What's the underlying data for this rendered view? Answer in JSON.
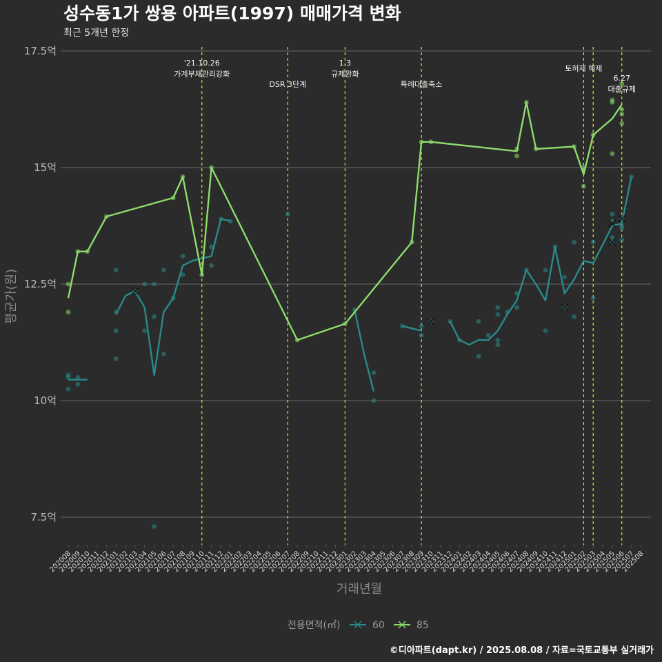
{
  "chart_data": {
    "type": "line",
    "title": "성수동1가 쌍용 아파트(1997) 매매가격 변화",
    "subtitle": "최근 5개년 한정",
    "xlabel": "거래년월",
    "ylabel": "평균가(원)",
    "caption": "©디아파트(dapt.kr) / 2025.08.08 / 자료=국토교통부 실거래가",
    "ylim": [
      6.9,
      17.5
    ],
    "y_ticks": [
      {
        "value": 7.5,
        "label": "7.5억"
      },
      {
        "value": 10,
        "label": "10억"
      },
      {
        "value": 12.5,
        "label": "12.5억"
      },
      {
        "value": 15,
        "label": "15억"
      },
      {
        "value": 17.5,
        "label": "17.5억"
      }
    ],
    "x_categories": [
      "202008",
      "202009",
      "202010",
      "202011",
      "202012",
      "202101",
      "202102",
      "202103",
      "202104",
      "202105",
      "202106",
      "202107",
      "202108",
      "202109",
      "202110",
      "202111",
      "202112",
      "202201",
      "202202",
      "202203",
      "202204",
      "202205",
      "202206",
      "202207",
      "202208",
      "202209",
      "202210",
      "202211",
      "202212",
      "202301",
      "202302",
      "202303",
      "202304",
      "202305",
      "202306",
      "202307",
      "202308",
      "202309",
      "202310",
      "202311",
      "202312",
      "202401",
      "202402",
      "202403",
      "202404",
      "202405",
      "202406",
      "202407",
      "202408",
      "202409",
      "202410",
      "202411",
      "202412",
      "202501",
      "202502",
      "202503",
      "202504",
      "202505",
      "202506",
      "202507",
      "202508"
    ],
    "legend": {
      "title": "전용면적(㎡)",
      "entries": [
        {
          "name": "60",
          "color": "#2a8a8a"
        },
        {
          "name": "85",
          "color": "#8edc6c"
        }
      ]
    },
    "series": [
      {
        "name": "60",
        "color": "#2a8a8a",
        "segments": [
          [
            [
              "202008",
              10.45
            ],
            [
              "202009",
              10.45
            ],
            [
              "202010",
              10.45
            ]
          ],
          [
            [
              "202101",
              11.85
            ],
            [
              "202102",
              12.25
            ],
            [
              "202103",
              12.35
            ],
            [
              "202104",
              12.0
            ],
            [
              "202105",
              10.55
            ],
            [
              "202106",
              11.9
            ],
            [
              "202107",
              12.2
            ],
            [
              "202108",
              12.9
            ],
            [
              "202109",
              13.0
            ],
            [
              "202110",
              13.05
            ],
            [
              "202111",
              13.1
            ],
            [
              "202112",
              13.9
            ],
            [
              "202201",
              13.85
            ]
          ],
          [
            [
              "202302",
              11.95
            ],
            [
              "202303",
              11.0
            ],
            [
              "202304",
              10.2
            ]
          ],
          [
            [
              "202307",
              11.6
            ],
            [
              "202308",
              11.55
            ],
            [
              "202309",
              11.5
            ]
          ],
          [
            [
              "202312",
              11.7
            ],
            [
              "202401",
              11.3
            ],
            [
              "202402",
              11.2
            ],
            [
              "202403",
              11.3
            ],
            [
              "202404",
              11.3
            ],
            [
              "202405",
              11.5
            ],
            [
              "202406",
              11.85
            ],
            [
              "202407",
              12.15
            ],
            [
              "202408",
              12.8
            ],
            [
              "202409",
              12.5
            ],
            [
              "202410",
              12.15
            ],
            [
              "202411",
              13.3
            ],
            [
              "202412",
              12.3
            ],
            [
              "202501",
              12.6
            ],
            [
              "202502",
              13.0
            ],
            [
              "202503",
              12.95
            ],
            [
              "202505",
              13.75
            ],
            [
              "202506",
              13.8
            ],
            [
              "202507",
              14.8
            ]
          ]
        ],
        "points": [
          [
            "202008",
            10.55
          ],
          [
            "202008",
            10.5
          ],
          [
            "202008",
            10.25
          ],
          [
            "202009",
            10.5
          ],
          [
            "202009",
            10.35
          ],
          [
            "202101",
            11.9
          ],
          [
            "202101",
            11.5
          ],
          [
            "202101",
            10.9
          ],
          [
            "202101",
            12.8
          ],
          [
            "202103",
            12.35
          ],
          [
            "202104",
            11.5
          ],
          [
            "202104",
            12.5
          ],
          [
            "202105",
            11.8
          ],
          [
            "202105",
            7.3
          ],
          [
            "202105",
            12.5
          ],
          [
            "202106",
            11.0
          ],
          [
            "202106",
            12.8
          ],
          [
            "202107",
            12.2
          ],
          [
            "202108",
            12.7
          ],
          [
            "202108",
            13.1
          ],
          [
            "202111",
            13.3
          ],
          [
            "202111",
            12.9
          ],
          [
            "202112",
            13.9
          ],
          [
            "202201",
            13.85
          ],
          [
            "202207",
            14.0
          ],
          [
            "202302",
            11.95
          ],
          [
            "202304",
            10.6
          ],
          [
            "202304",
            10.0
          ],
          [
            "202307",
            11.6
          ],
          [
            "202309",
            11.4
          ],
          [
            "202309",
            11.6
          ],
          [
            "202310",
            11.7
          ],
          [
            "202312",
            11.7
          ],
          [
            "202401",
            11.3
          ],
          [
            "202403",
            11.7
          ],
          [
            "202403",
            10.95
          ],
          [
            "202404",
            11.4
          ],
          [
            "202405",
            11.3
          ],
          [
            "202405",
            11.2
          ],
          [
            "202405",
            11.85
          ],
          [
            "202405",
            12.0
          ],
          [
            "202406",
            11.9
          ],
          [
            "202407",
            12.0
          ],
          [
            "202407",
            12.3
          ],
          [
            "202408",
            12.8
          ],
          [
            "202410",
            11.5
          ],
          [
            "202410",
            12.8
          ],
          [
            "202411",
            13.3
          ],
          [
            "202412",
            12.0
          ],
          [
            "202412",
            12.65
          ],
          [
            "202501",
            11.8
          ],
          [
            "202501",
            13.4
          ],
          [
            "202503",
            12.2
          ],
          [
            "202503",
            13.4
          ],
          [
            "202505",
            13.85
          ],
          [
            "202505",
            13.5
          ],
          [
            "202505",
            13.4
          ],
          [
            "202505",
            14.0
          ],
          [
            "202506",
            13.7
          ],
          [
            "202506",
            13.45
          ],
          [
            "202506",
            13.9
          ],
          [
            "202506",
            13.75
          ],
          [
            "202507",
            14.8
          ]
        ],
        "x_markers": [
          [
            "202103",
            12.35
          ],
          [
            "202310",
            11.7
          ],
          [
            "202412",
            12.0
          ],
          [
            "202505",
            13.8
          ],
          [
            "202505",
            13.4
          ],
          [
            "202506",
            13.9
          ]
        ]
      },
      {
        "name": "85",
        "color": "#8edc6c",
        "segments": [
          [
            [
              "202008",
              12.2
            ],
            [
              "202009",
              13.2
            ],
            [
              "202010",
              13.2
            ],
            [
              "202012",
              13.95
            ],
            [
              "202107",
              14.35
            ],
            [
              "202108",
              14.8
            ],
            [
              "202110",
              12.7
            ],
            [
              "202111",
              15.0
            ],
            [
              "202208",
              11.3
            ],
            [
              "202301",
              11.65
            ],
            [
              "202308",
              13.4
            ],
            [
              "202309",
              15.55
            ],
            [
              "202310",
              15.55
            ],
            [
              "202407",
              15.35
            ],
            [
              "202408",
              16.4
            ],
            [
              "202409",
              15.4
            ],
            [
              "202501",
              15.45
            ],
            [
              "202502",
              14.85
            ],
            [
              "202503",
              15.7
            ],
            [
              "202505",
              16.05
            ],
            [
              "202506",
              16.35
            ]
          ]
        ],
        "points": [
          [
            "202008",
            12.5
          ],
          [
            "202008",
            11.9
          ],
          [
            "202009",
            13.2
          ],
          [
            "202010",
            13.2
          ],
          [
            "202012",
            13.95
          ],
          [
            "202107",
            14.35
          ],
          [
            "202108",
            14.8
          ],
          [
            "202110",
            12.7
          ],
          [
            "202111",
            15.0
          ],
          [
            "202208",
            11.3
          ],
          [
            "202301",
            11.65
          ],
          [
            "202308",
            13.4
          ],
          [
            "202309",
            15.55
          ],
          [
            "202310",
            15.55
          ],
          [
            "202407",
            15.4
          ],
          [
            "202407",
            15.25
          ],
          [
            "202408",
            16.4
          ],
          [
            "202409",
            15.4
          ],
          [
            "202501",
            15.45
          ],
          [
            "202502",
            15.0
          ],
          [
            "202502",
            14.6
          ],
          [
            "202503",
            15.7
          ],
          [
            "202505",
            16.45
          ],
          [
            "202505",
            16.4
          ],
          [
            "202505",
            15.3
          ],
          [
            "202506",
            16.8
          ],
          [
            "202506",
            16.25
          ],
          [
            "202506",
            16.15
          ],
          [
            "202506",
            15.95
          ]
        ],
        "x_markers": []
      }
    ],
    "annotations": [
      {
        "x": "202110",
        "lines": [
          "'21.10.26",
          "가계부채관리강화"
        ]
      },
      {
        "x": "202207",
        "lines": [
          "DSR 3단계"
        ]
      },
      {
        "x": "202301",
        "lines": [
          "1.3",
          "규제완화"
        ]
      },
      {
        "x": "202309",
        "lines": [
          "특례대출축소"
        ]
      },
      {
        "x": "202502",
        "lines": [
          "토허제 해제"
        ]
      },
      {
        "x": "202503",
        "lines": []
      },
      {
        "x": "202506",
        "lines": [
          "6.27",
          "대출규제"
        ]
      }
    ]
  }
}
